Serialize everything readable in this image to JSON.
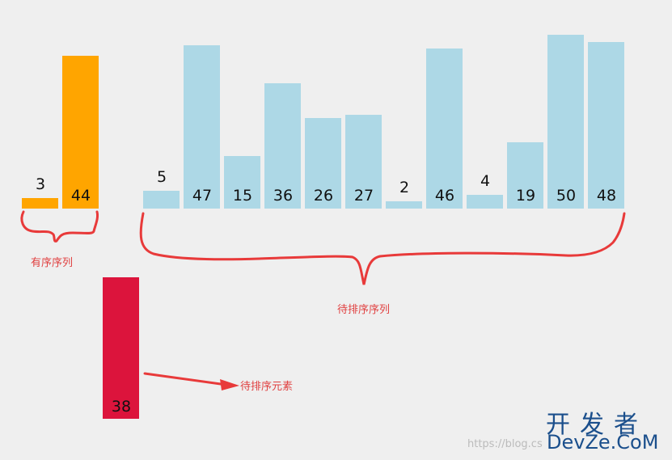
{
  "colors": {
    "sorted": "#ffa500",
    "unsorted": "#add8e6",
    "key": "#dc143c",
    "annotation": "#e83a3a",
    "background": "#efefef"
  },
  "sorted_items": [
    3,
    44
  ],
  "unsorted_items": [
    5,
    47,
    15,
    36,
    26,
    27,
    2,
    46,
    4,
    19,
    50,
    48
  ],
  "key_item": 38,
  "labels": {
    "sorted": "有序序列",
    "unsorted": "待排序序列",
    "key": "待排序元素"
  },
  "watermark": {
    "cn": "开发者",
    "en": "DevZe.CoM",
    "url": "https://blog.cs"
  }
}
